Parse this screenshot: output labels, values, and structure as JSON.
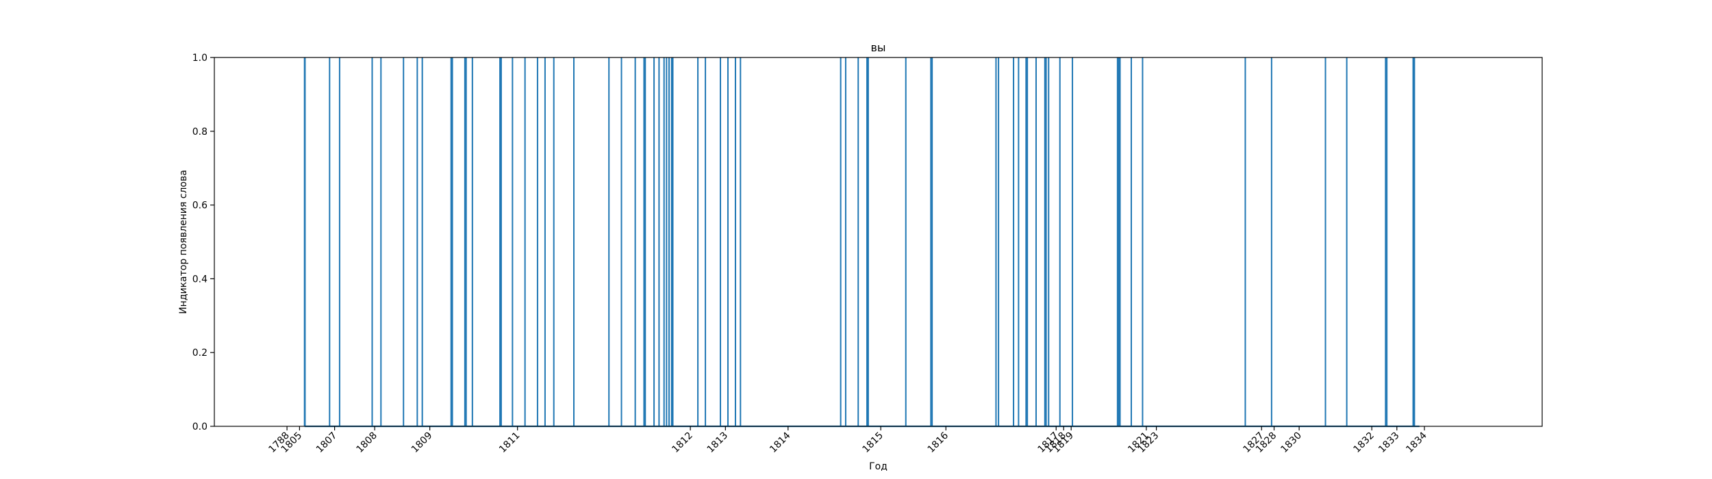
{
  "chart_data": {
    "type": "line",
    "title": "вы",
    "xlabel": "Год",
    "ylabel": "Индикатор появления слова",
    "ylim": [
      0.0,
      1.0
    ],
    "y_ticks": [
      "0.0",
      "0.2",
      "0.4",
      "0.6",
      "0.8",
      "1.0"
    ],
    "grid": false,
    "legend": "none",
    "colors": {
      "series": "#1f77b4",
      "axis": "#000000",
      "background": "#ffffff"
    },
    "x_tick_labels": [
      {
        "label": "1788",
        "at": 1.9
      },
      {
        "label": "1805",
        "at": 2.4
      },
      {
        "label": "1807",
        "at": 3.8
      },
      {
        "label": "1808",
        "at": 5.4
      },
      {
        "label": "1809",
        "at": 7.6
      },
      {
        "label": "1811",
        "at": 11.1
      },
      {
        "label": "1812",
        "at": 18.0
      },
      {
        "label": "1813",
        "at": 19.4
      },
      {
        "label": "1814",
        "at": 21.9
      },
      {
        "label": "1815",
        "at": 25.6
      },
      {
        "label": "1816",
        "at": 28.2
      },
      {
        "label": "1817",
        "at": 32.6
      },
      {
        "label": "1818",
        "at": 32.9
      },
      {
        "label": "1819",
        "at": 33.2
      },
      {
        "label": "1821",
        "at": 36.2
      },
      {
        "label": "1823",
        "at": 36.6
      },
      {
        "label": "1827",
        "at": 40.8
      },
      {
        "label": "1828",
        "at": 41.3
      },
      {
        "label": "1830",
        "at": 42.3
      },
      {
        "label": "1832",
        "at": 45.2
      },
      {
        "label": "1833",
        "at": 46.2
      },
      {
        "label": "1834",
        "at": 47.3
      }
    ],
    "occurrences": [
      2.6,
      2.62,
      3.6,
      4.0,
      5.3,
      5.65,
      6.55,
      7.1,
      7.3,
      8.45,
      8.5,
      9.0,
      9.05,
      9.3,
      10.4,
      10.45,
      10.9,
      11.4,
      11.9,
      12.2,
      12.55,
      13.35,
      14.75,
      15.25,
      15.8,
      16.15,
      16.2,
      16.55,
      16.75,
      16.95,
      17.05,
      17.15,
      17.25,
      17.3,
      18.3,
      18.6,
      19.2,
      19.5,
      19.8,
      20.0,
      24.0,
      24.2,
      24.7,
      25.05,
      25.1,
      26.6,
      27.6,
      27.65,
      30.2,
      30.3,
      30.9,
      31.1,
      31.4,
      31.45,
      31.8,
      32.15,
      32.2,
      32.3,
      32.75,
      33.25,
      35.05,
      35.1,
      35.15,
      35.6,
      36.05,
      40.15,
      41.2,
      43.35,
      44.2,
      45.75,
      45.8,
      46.85,
      46.9
    ]
  }
}
